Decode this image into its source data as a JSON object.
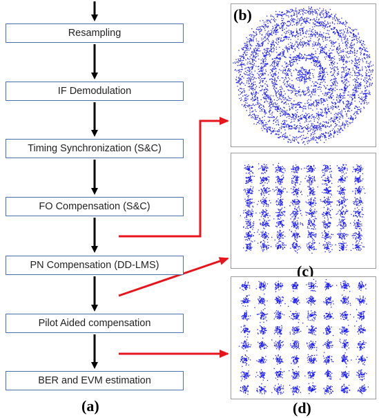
{
  "flowchart": {
    "steps": [
      "Resampling",
      "IF Demodulation",
      "Timing Synchronization (S&C)",
      "FO Compensation (S&C)",
      "PN Compensation (DD-LMS)",
      "Pilot Aided compensation",
      "BER and EVM estimation"
    ],
    "label": "(a)"
  },
  "panels": {
    "b": {
      "label": "(b)",
      "plot": "ring-constellation"
    },
    "c": {
      "label": "(c)",
      "plot": "8x8-qam-constellation"
    },
    "d": {
      "label": "(d)",
      "plot": "8x8-qam-constellation"
    }
  },
  "colors": {
    "box_border": "#4a6fa5",
    "flow_arrow": "#000000",
    "pointer_arrow": "#e8141b",
    "points": "#1a1aff"
  }
}
